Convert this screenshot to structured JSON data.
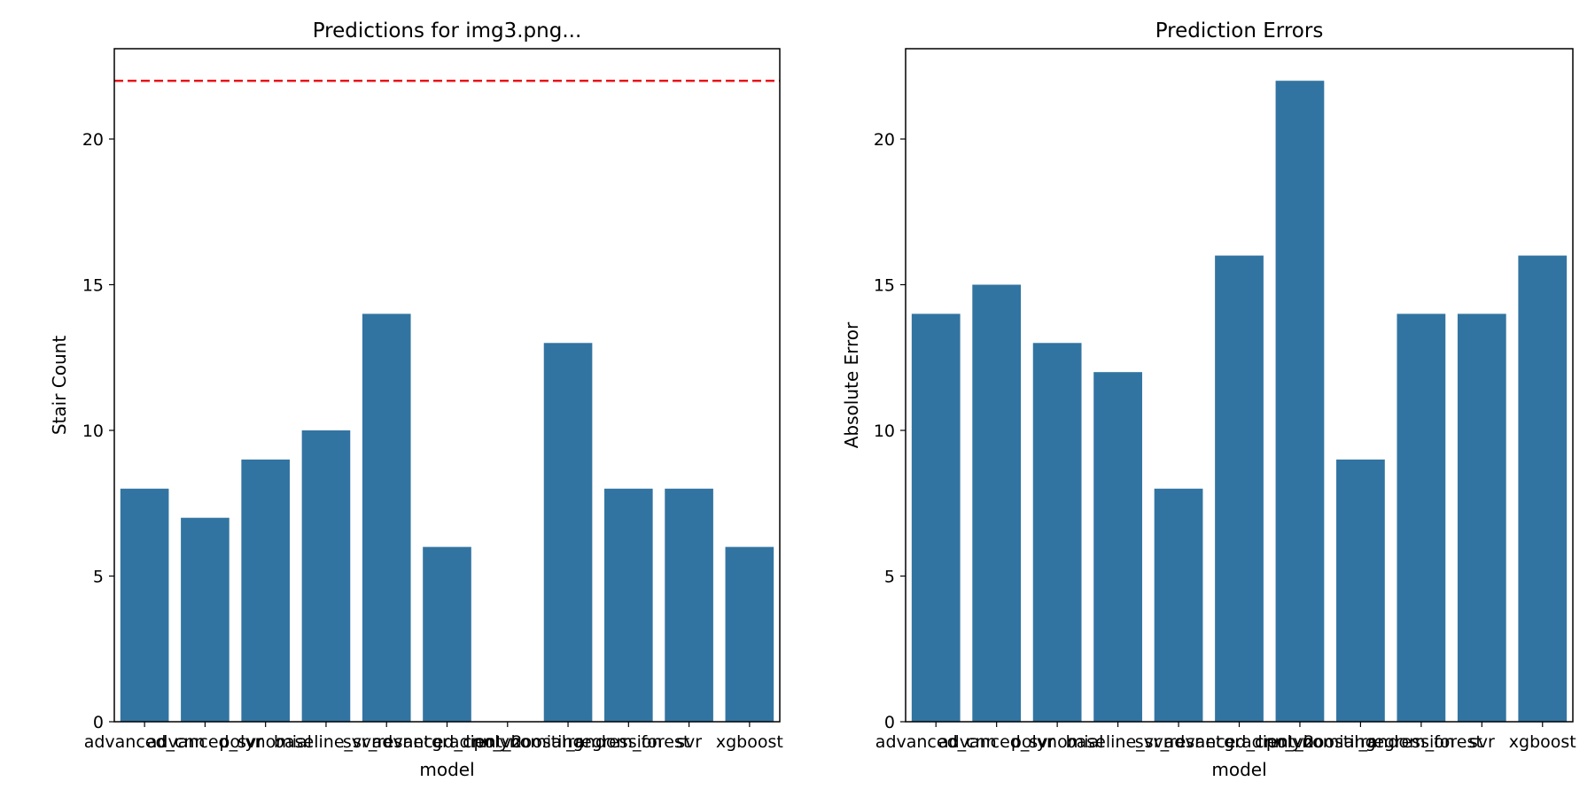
{
  "colors": {
    "bar": "#3274a1",
    "reference_line": "#e8161b",
    "axes": "#000000",
    "background": "#ffffff"
  },
  "chart_data": [
    {
      "type": "bar",
      "title": "Predictions for img3.png...",
      "xlabel": "model",
      "ylabel": "Stair Count",
      "categories": [
        "advanced_cnn",
        "advanced_svr",
        "polynomial",
        "baseline_svr",
        "svr_resnet",
        "advanced_cnn_v2",
        "gradient_boosting",
        "polynomial_regression",
        "random_forest",
        "svr",
        "xgboost"
      ],
      "category_labels": [
        "advanced_cnn",
        "advanced_svr",
        "polynomial",
        "baseline_svr",
        "svr_resnet",
        "advanced_cnn_v2",
        "gradient_boosting",
        "polynomial_regression",
        "random_forest",
        "svr",
        "xgboost"
      ],
      "values": [
        8,
        7,
        9,
        10,
        14,
        6,
        0,
        13,
        8,
        8,
        6
      ],
      "reference_line": {
        "value": 22,
        "style": "dashed"
      },
      "yticks": [
        0,
        5,
        10,
        15,
        20
      ],
      "ylim": [
        0,
        23.1
      ],
      "grid": false
    },
    {
      "type": "bar",
      "title": "Prediction Errors",
      "xlabel": "model",
      "ylabel": "Absolute Error",
      "categories": [
        "advanced_cnn",
        "advanced_svr",
        "polynomial",
        "baseline_svr",
        "svr_resnet",
        "advanced_cnn_v2",
        "gradient_boosting",
        "polynomial_regression",
        "random_forest",
        "svr",
        "xgboost"
      ],
      "category_labels": [
        "advanced_cnn",
        "advanced_svr",
        "polynomial",
        "baseline_svr",
        "svr_resnet",
        "advanced_cnn_v2",
        "gradient_boosting",
        "polynomial_regression",
        "random_forest",
        "svr",
        "xgboost"
      ],
      "values": [
        14,
        15,
        13,
        12,
        8,
        16,
        22,
        9,
        14,
        14,
        16
      ],
      "yticks": [
        0,
        5,
        10,
        15,
        20
      ],
      "ylim": [
        0,
        23.1
      ],
      "grid": false
    }
  ]
}
